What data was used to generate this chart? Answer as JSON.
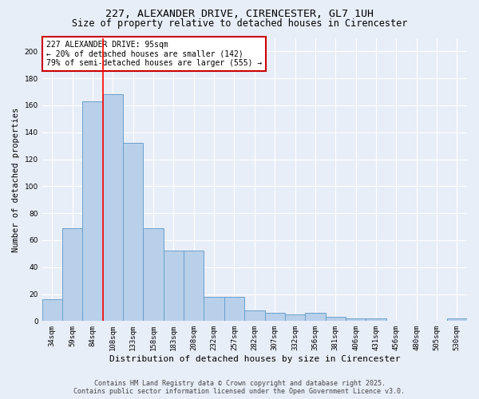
{
  "title": "227, ALEXANDER DRIVE, CIRENCESTER, GL7 1UH",
  "subtitle": "Size of property relative to detached houses in Cirencester",
  "xlabel": "Distribution of detached houses by size in Cirencester",
  "ylabel": "Number of detached properties",
  "categories": [
    "34sqm",
    "59sqm",
    "84sqm",
    "108sqm",
    "133sqm",
    "158sqm",
    "183sqm",
    "208sqm",
    "232sqm",
    "257sqm",
    "282sqm",
    "307sqm",
    "332sqm",
    "356sqm",
    "381sqm",
    "406sqm",
    "431sqm",
    "456sqm",
    "480sqm",
    "505sqm",
    "530sqm"
  ],
  "values": [
    16,
    69,
    163,
    168,
    132,
    69,
    52,
    52,
    18,
    18,
    8,
    6,
    5,
    6,
    3,
    2,
    2,
    0,
    0,
    0,
    2
  ],
  "bar_color": "#b8d0ea",
  "bar_edge_color": "#6aa0cc",
  "redline_x": 2.5,
  "annotation_text": "227 ALEXANDER DRIVE: 95sqm\n← 20% of detached houses are smaller (142)\n79% of semi-detached houses are larger (555) →",
  "annotation_box_color": "#ffffff",
  "annotation_box_edge_color": "#cc0000",
  "ylim": [
    0,
    210
  ],
  "yticks": [
    0,
    20,
    40,
    60,
    80,
    100,
    120,
    140,
    160,
    180,
    200
  ],
  "footer_line1": "Contains HM Land Registry data © Crown copyright and database right 2025.",
  "footer_line2": "Contains public sector information licensed under the Open Government Licence v3.0.",
  "bg_color": "#e8eef8",
  "plot_bg_color": "#e8eef8",
  "grid_color": "#ffffff",
  "title_fontsize": 9.5,
  "subtitle_fontsize": 8.5,
  "xlabel_fontsize": 8,
  "ylabel_fontsize": 7.5,
  "tick_fontsize": 6.5,
  "annotation_fontsize": 7,
  "footer_fontsize": 6
}
